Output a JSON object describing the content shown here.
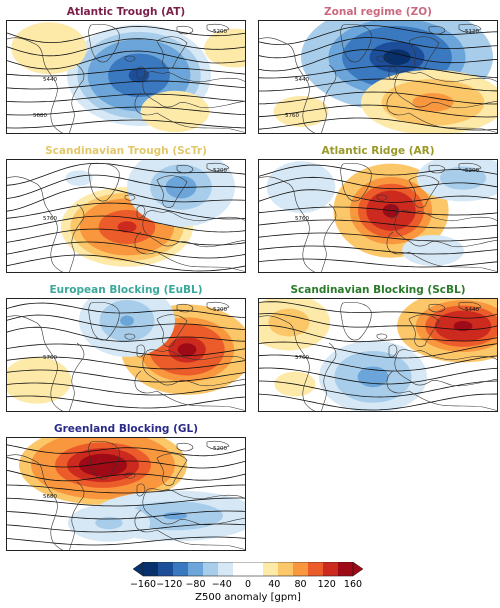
{
  "panels": [
    {
      "id": "AT",
      "title": "Atlantic Trough (AT)",
      "title_color": "#7a1f4a",
      "anomalies": [
        {
          "lon": -20,
          "lat": 55,
          "amp": -130,
          "rx": 60,
          "ry": 28
        },
        {
          "lon": -95,
          "lat": 70,
          "amp": 35,
          "rx": 55,
          "ry": 25
        },
        {
          "lon": 60,
          "lat": 70,
          "amp": 30,
          "rx": 60,
          "ry": 25
        },
        {
          "lon": 10,
          "lat": 35,
          "amp": 35,
          "rx": 50,
          "ry": 20
        }
      ],
      "contour_labels": [
        "5200",
        "5440",
        "5680"
      ]
    },
    {
      "id": "ZO",
      "title": "Zonal regime (ZO)",
      "title_color": "#c96a7f",
      "anomalies": [
        {
          "lon": -15,
          "lat": 65,
          "amp": -150,
          "rx": 80,
          "ry": 30
        },
        {
          "lon": 15,
          "lat": 40,
          "amp": 90,
          "rx": 60,
          "ry": 18
        },
        {
          "lon": -95,
          "lat": 35,
          "amp": 35,
          "rx": 40,
          "ry": 15
        }
      ],
      "contour_labels": [
        "5120",
        "5440",
        "5760"
      ]
    },
    {
      "id": "ScTr",
      "title": "Scandinavian Trough (ScTr)",
      "title_color": "#e2c86b",
      "anomalies": [
        {
          "lon": -30,
          "lat": 48,
          "amp": 130,
          "rx": 55,
          "ry": 22
        },
        {
          "lon": 15,
          "lat": 70,
          "amp": -80,
          "rx": 45,
          "ry": 22
        },
        {
          "lon": -70,
          "lat": 75,
          "amp": -25,
          "rx": 40,
          "ry": 15
        }
      ],
      "contour_labels": [
        "5200",
        "5760"
      ]
    },
    {
      "id": "AR",
      "title": "Atlantic Ridge (AR)",
      "title_color": "#9a9a2a",
      "anomalies": [
        {
          "lon": -20,
          "lat": 57,
          "amp": 160,
          "rx": 48,
          "ry": 26
        },
        {
          "lon": 40,
          "lat": 75,
          "amp": -60,
          "rx": 45,
          "ry": 15
        },
        {
          "lon": -95,
          "lat": 70,
          "amp": -40,
          "rx": 40,
          "ry": 20
        },
        {
          "lon": 15,
          "lat": 35,
          "amp": -35,
          "rx": 45,
          "ry": 15
        }
      ],
      "contour_labels": [
        "5200",
        "5760"
      ]
    },
    {
      "id": "EuBL",
      "title": "European Blocking (EuBL)",
      "title_color": "#3aa89a",
      "anomalies": [
        {
          "lon": 20,
          "lat": 57,
          "amp": 150,
          "rx": 55,
          "ry": 25
        },
        {
          "lon": -30,
          "lat": 73,
          "amp": -70,
          "rx": 40,
          "ry": 20
        },
        {
          "lon": -105,
          "lat": 40,
          "amp": 40,
          "rx": 40,
          "ry": 18
        }
      ],
      "contour_labels": [
        "5200",
        "5760"
      ]
    },
    {
      "id": "ScBL",
      "title": "Scandinavian Blocking (ScBL)",
      "title_color": "#2a7a2a",
      "anomalies": [
        {
          "lon": 40,
          "lat": 70,
          "amp": 160,
          "rx": 55,
          "ry": 20
        },
        {
          "lon": -35,
          "lat": 42,
          "amp": -90,
          "rx": 45,
          "ry": 20
        },
        {
          "lon": -105,
          "lat": 72,
          "amp": 60,
          "rx": 40,
          "ry": 18
        },
        {
          "lon": -100,
          "lat": 38,
          "amp": 35,
          "rx": 30,
          "ry": 12
        }
      ],
      "contour_labels": [
        "5440",
        "5760"
      ]
    },
    {
      "id": "GL",
      "title": "Greenland Blocking (GL)",
      "title_color": "#2a2a8a",
      "anomalies": [
        {
          "lon": -50,
          "lat": 70,
          "amp": 170,
          "rx": 70,
          "ry": 22
        },
        {
          "lon": 10,
          "lat": 42,
          "amp": -70,
          "rx": 70,
          "ry": 14
        },
        {
          "lon": -45,
          "lat": 38,
          "amp": -55,
          "rx": 40,
          "ry": 12
        }
      ],
      "contour_labels": [
        "5200",
        "5680"
      ]
    }
  ],
  "colorbar": {
    "label": "Z500 anomaly [gpm]",
    "ticks": [
      "−160",
      "−120",
      "−80",
      "−40",
      "0",
      "40",
      "80",
      "120",
      "160"
    ],
    "colors": [
      "#08306b",
      "#1c4e9a",
      "#3a78bf",
      "#6ba5d9",
      "#a8cdea",
      "#d6e8f5",
      "#ffffff",
      "#ffffff",
      "#fde9a8",
      "#fcc768",
      "#f9973f",
      "#ec5c2a",
      "#cd2a1f",
      "#9e0a16"
    ]
  }
}
